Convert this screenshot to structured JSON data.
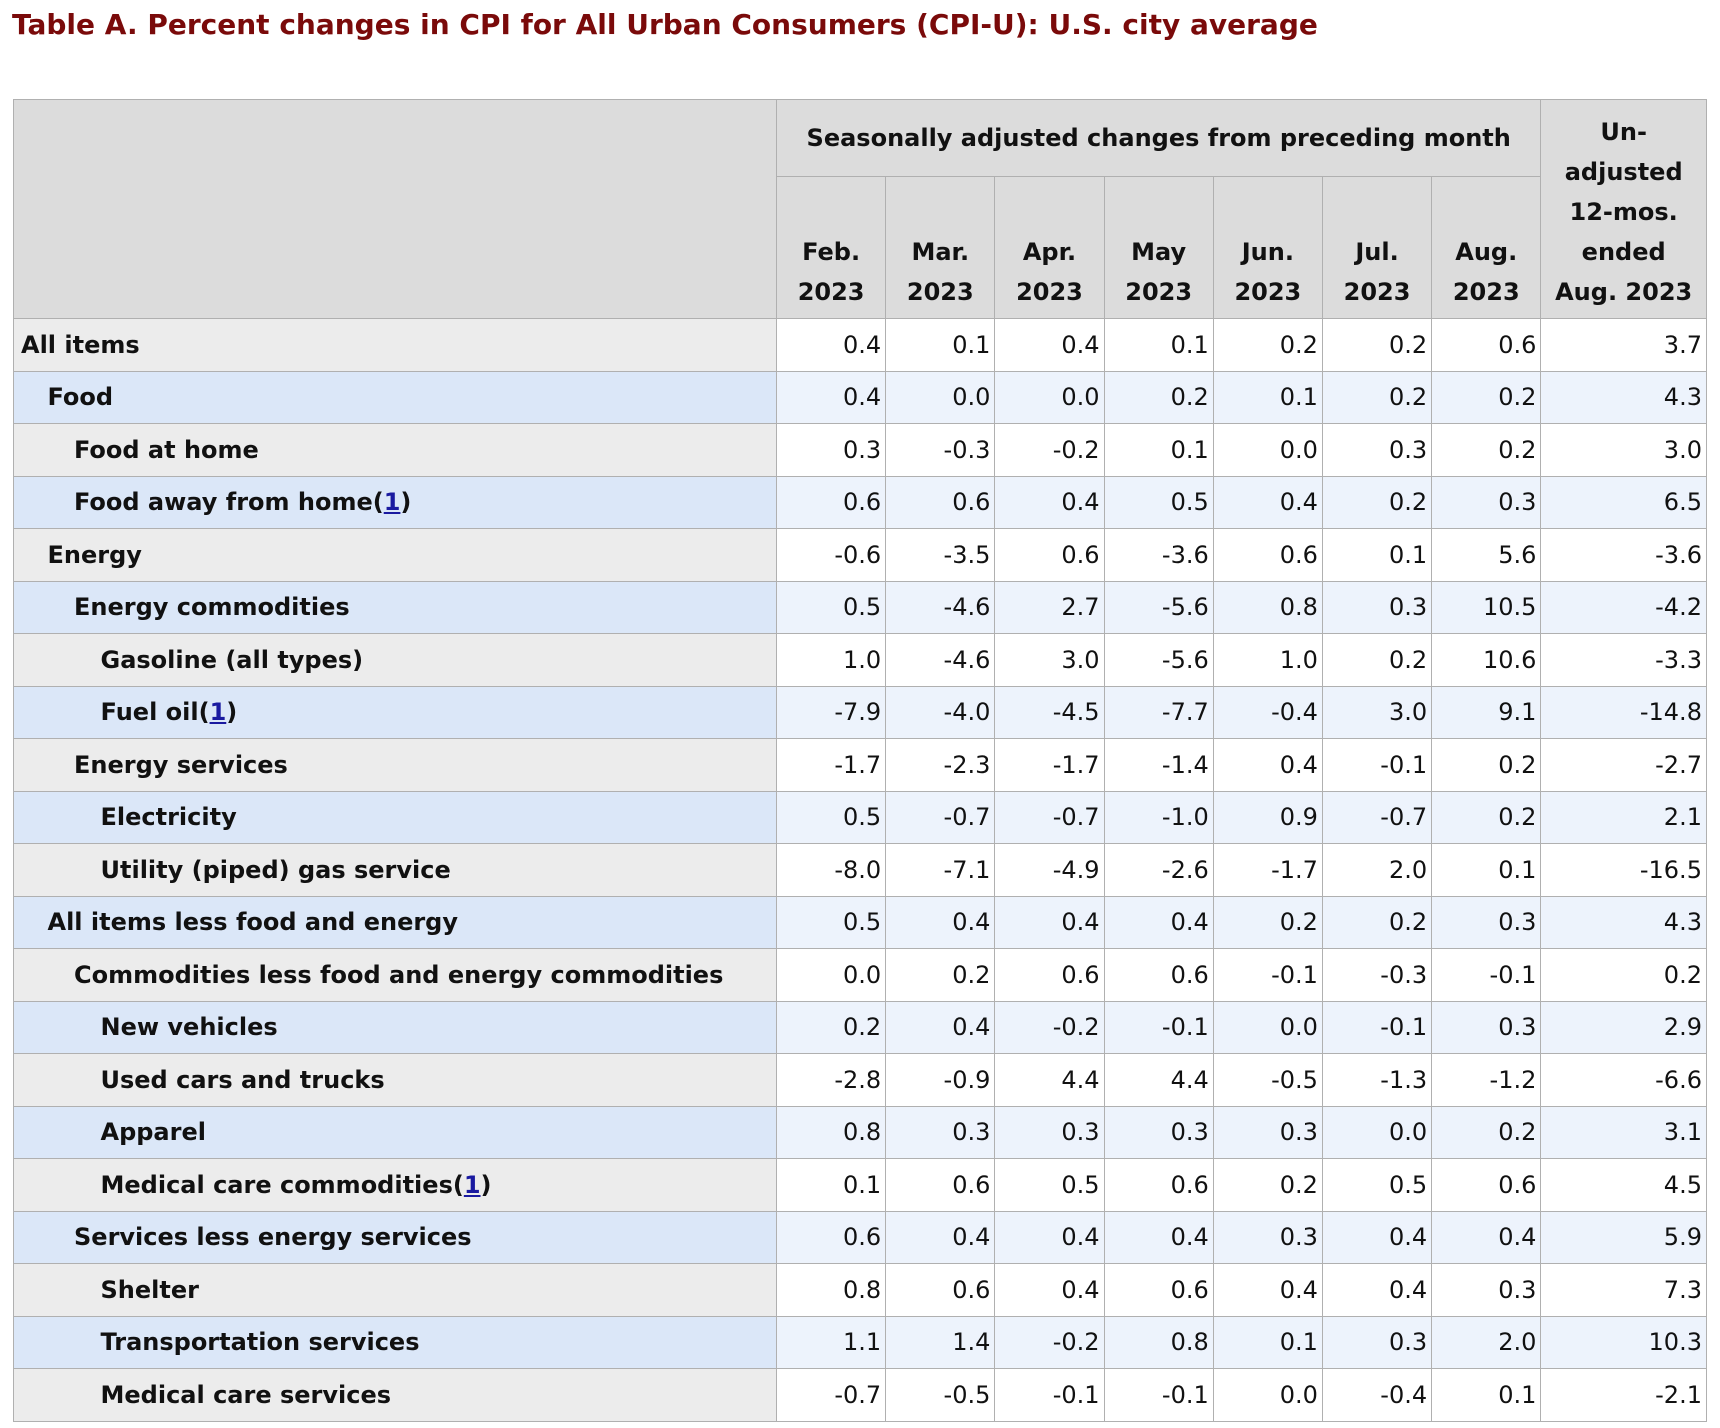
{
  "title": "Table A. Percent changes in CPI for All Urban Consumers (CPI-U): U.S. city average",
  "table": {
    "group_header": "Seasonally adjusted changes from preceding month",
    "columns": [
      [
        "Feb.",
        "2023"
      ],
      [
        "Mar.",
        "2023"
      ],
      [
        "Apr.",
        "2023"
      ],
      [
        "May",
        "2023"
      ],
      [
        "Jun.",
        "2023"
      ],
      [
        "Jul.",
        "2023"
      ],
      [
        "Aug.",
        "2023"
      ]
    ],
    "last_column": [
      "Un-",
      "adjusted",
      "12-mos.",
      "ended",
      "Aug. 2023"
    ],
    "rows": [
      {
        "label": "All items",
        "indent": 0,
        "values": [
          "0.4",
          "0.1",
          "0.4",
          "0.1",
          "0.2",
          "0.2",
          "0.6",
          "3.7"
        ]
      },
      {
        "label": "Food",
        "indent": 1,
        "values": [
          "0.4",
          "0.0",
          "0.0",
          "0.2",
          "0.1",
          "0.2",
          "0.2",
          "4.3"
        ]
      },
      {
        "label": "Food at home",
        "indent": 2,
        "values": [
          "0.3",
          "-0.3",
          "-0.2",
          "0.1",
          "0.0",
          "0.3",
          "0.2",
          "3.0"
        ]
      },
      {
        "label": "Food away from home",
        "footnote": [
          "(",
          "1",
          ")"
        ],
        "indent": 2,
        "values": [
          "0.6",
          "0.6",
          "0.4",
          "0.5",
          "0.4",
          "0.2",
          "0.3",
          "6.5"
        ]
      },
      {
        "label": "Energy",
        "indent": 1,
        "values": [
          "-0.6",
          "-3.5",
          "0.6",
          "-3.6",
          "0.6",
          "0.1",
          "5.6",
          "-3.6"
        ]
      },
      {
        "label": "Energy commodities",
        "indent": 2,
        "values": [
          "0.5",
          "-4.6",
          "2.7",
          "-5.6",
          "0.8",
          "0.3",
          "10.5",
          "-4.2"
        ]
      },
      {
        "label": "Gasoline (all types)",
        "indent": 3,
        "values": [
          "1.0",
          "-4.6",
          "3.0",
          "-5.6",
          "1.0",
          "0.2",
          "10.6",
          "-3.3"
        ]
      },
      {
        "label": "Fuel oil",
        "footnote": [
          "(",
          "1",
          ")"
        ],
        "indent": 3,
        "values": [
          "-7.9",
          "-4.0",
          "-4.5",
          "-7.7",
          "-0.4",
          "3.0",
          "9.1",
          "-14.8"
        ]
      },
      {
        "label": "Energy services",
        "indent": 2,
        "values": [
          "-1.7",
          "-2.3",
          "-1.7",
          "-1.4",
          "0.4",
          "-0.1",
          "0.2",
          "-2.7"
        ]
      },
      {
        "label": "Electricity",
        "indent": 3,
        "values": [
          "0.5",
          "-0.7",
          "-0.7",
          "-1.0",
          "0.9",
          "-0.7",
          "0.2",
          "2.1"
        ]
      },
      {
        "label": "Utility (piped) gas service",
        "indent": 3,
        "values": [
          "-8.0",
          "-7.1",
          "-4.9",
          "-2.6",
          "-1.7",
          "2.0",
          "0.1",
          "-16.5"
        ]
      },
      {
        "label": "All items less food and energy",
        "indent": 1,
        "values": [
          "0.5",
          "0.4",
          "0.4",
          "0.4",
          "0.2",
          "0.2",
          "0.3",
          "4.3"
        ]
      },
      {
        "label": "Commodities less food and energy commodities",
        "indent": 2,
        "values": [
          "0.0",
          "0.2",
          "0.6",
          "0.6",
          "-0.1",
          "-0.3",
          "-0.1",
          "0.2"
        ]
      },
      {
        "label": "New vehicles",
        "indent": 3,
        "values": [
          "0.2",
          "0.4",
          "-0.2",
          "-0.1",
          "0.0",
          "-0.1",
          "0.3",
          "2.9"
        ]
      },
      {
        "label": "Used cars and trucks",
        "indent": 3,
        "values": [
          "-2.8",
          "-0.9",
          "4.4",
          "4.4",
          "-0.5",
          "-1.3",
          "-1.2",
          "-6.6"
        ]
      },
      {
        "label": "Apparel",
        "indent": 3,
        "values": [
          "0.8",
          "0.3",
          "0.3",
          "0.3",
          "0.3",
          "0.0",
          "0.2",
          "3.1"
        ]
      },
      {
        "label": "Medical care commodities",
        "footnote": [
          "(",
          "1",
          ")"
        ],
        "indent": 3,
        "values": [
          "0.1",
          "0.6",
          "0.5",
          "0.6",
          "0.2",
          "0.5",
          "0.6",
          "4.5"
        ]
      },
      {
        "label": "Services less energy services",
        "indent": 2,
        "values": [
          "0.6",
          "0.4",
          "0.4",
          "0.4",
          "0.3",
          "0.4",
          "0.4",
          "5.9"
        ]
      },
      {
        "label": "Shelter",
        "indent": 3,
        "values": [
          "0.8",
          "0.6",
          "0.4",
          "0.6",
          "0.4",
          "0.4",
          "0.3",
          "7.3"
        ]
      },
      {
        "label": "Transportation services",
        "indent": 3,
        "values": [
          "1.1",
          "1.4",
          "-0.2",
          "0.8",
          "0.1",
          "0.3",
          "2.0",
          "10.3"
        ]
      },
      {
        "label": "Medical care services",
        "indent": 3,
        "values": [
          "-0.7",
          "-0.5",
          "-0.1",
          "-0.1",
          "0.0",
          "-0.4",
          "0.1",
          "-2.1"
        ]
      }
    ]
  }
}
